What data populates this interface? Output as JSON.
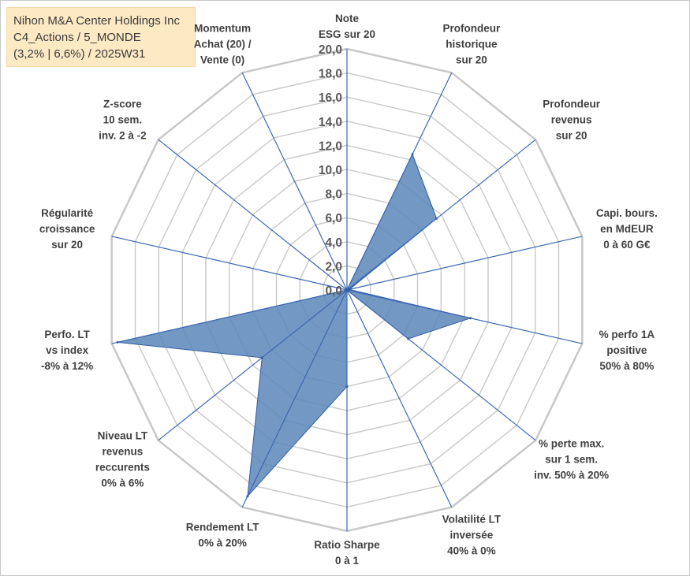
{
  "title": {
    "line1": "Nihon M&A Center Holdings Inc",
    "line2": "C4_Actions / 5_MONDE",
    "line3": "(3,2% | 6,6%) / 2025W31"
  },
  "chart_data": {
    "type": "radar",
    "rmin": 0,
    "rmax": 20,
    "tick_step": 2,
    "tick_labels": [
      "0,0",
      "2,0",
      "4,0",
      "6,0",
      "8,0",
      "10,0",
      "12,0",
      "14,0",
      "16,0",
      "18,0",
      "20,0"
    ],
    "axes": [
      [
        "Note",
        "ESG sur 20"
      ],
      [
        "Profondeur",
        "historique",
        "sur 20"
      ],
      [
        "Profondeur",
        "revenus",
        "sur 20"
      ],
      [
        "Capi. bours.",
        "en MdEUR",
        "0 à 60 G€"
      ],
      [
        "% perfo 1A",
        "positive",
        "50% à 80%"
      ],
      [
        "% perte max.",
        "sur 1 sem.",
        "inv. 50% à 20%"
      ],
      [
        "Volatilité LT",
        "inversée",
        "40% à 0%"
      ],
      [
        "Ratio Sharpe",
        "0 à 1"
      ],
      [
        "Rendement LT",
        "0% à 20%"
      ],
      [
        "Niveau LT",
        "revenus",
        "reccurents",
        "0% à 6%"
      ],
      [
        "Perfo. LT",
        "vs index",
        "-8% à 12%"
      ],
      [
        "Régularité",
        "croissance",
        "sur 20"
      ],
      [
        "Z-score",
        "10 sem.",
        "inv. 2 à -2"
      ],
      [
        "Momentum",
        "Achat (20) /",
        "Vente (0)"
      ]
    ],
    "values": [
      0,
      12.5,
      9.5,
      0.2,
      10.5,
      6.5,
      0,
      8.0,
      19.0,
      9.0,
      19.5,
      0,
      0,
      0
    ],
    "colors": {
      "fill": "#5b86b8",
      "stroke": "#2f5ea3",
      "axis": "#3b68b4",
      "grid": "#c8c8c8"
    }
  }
}
